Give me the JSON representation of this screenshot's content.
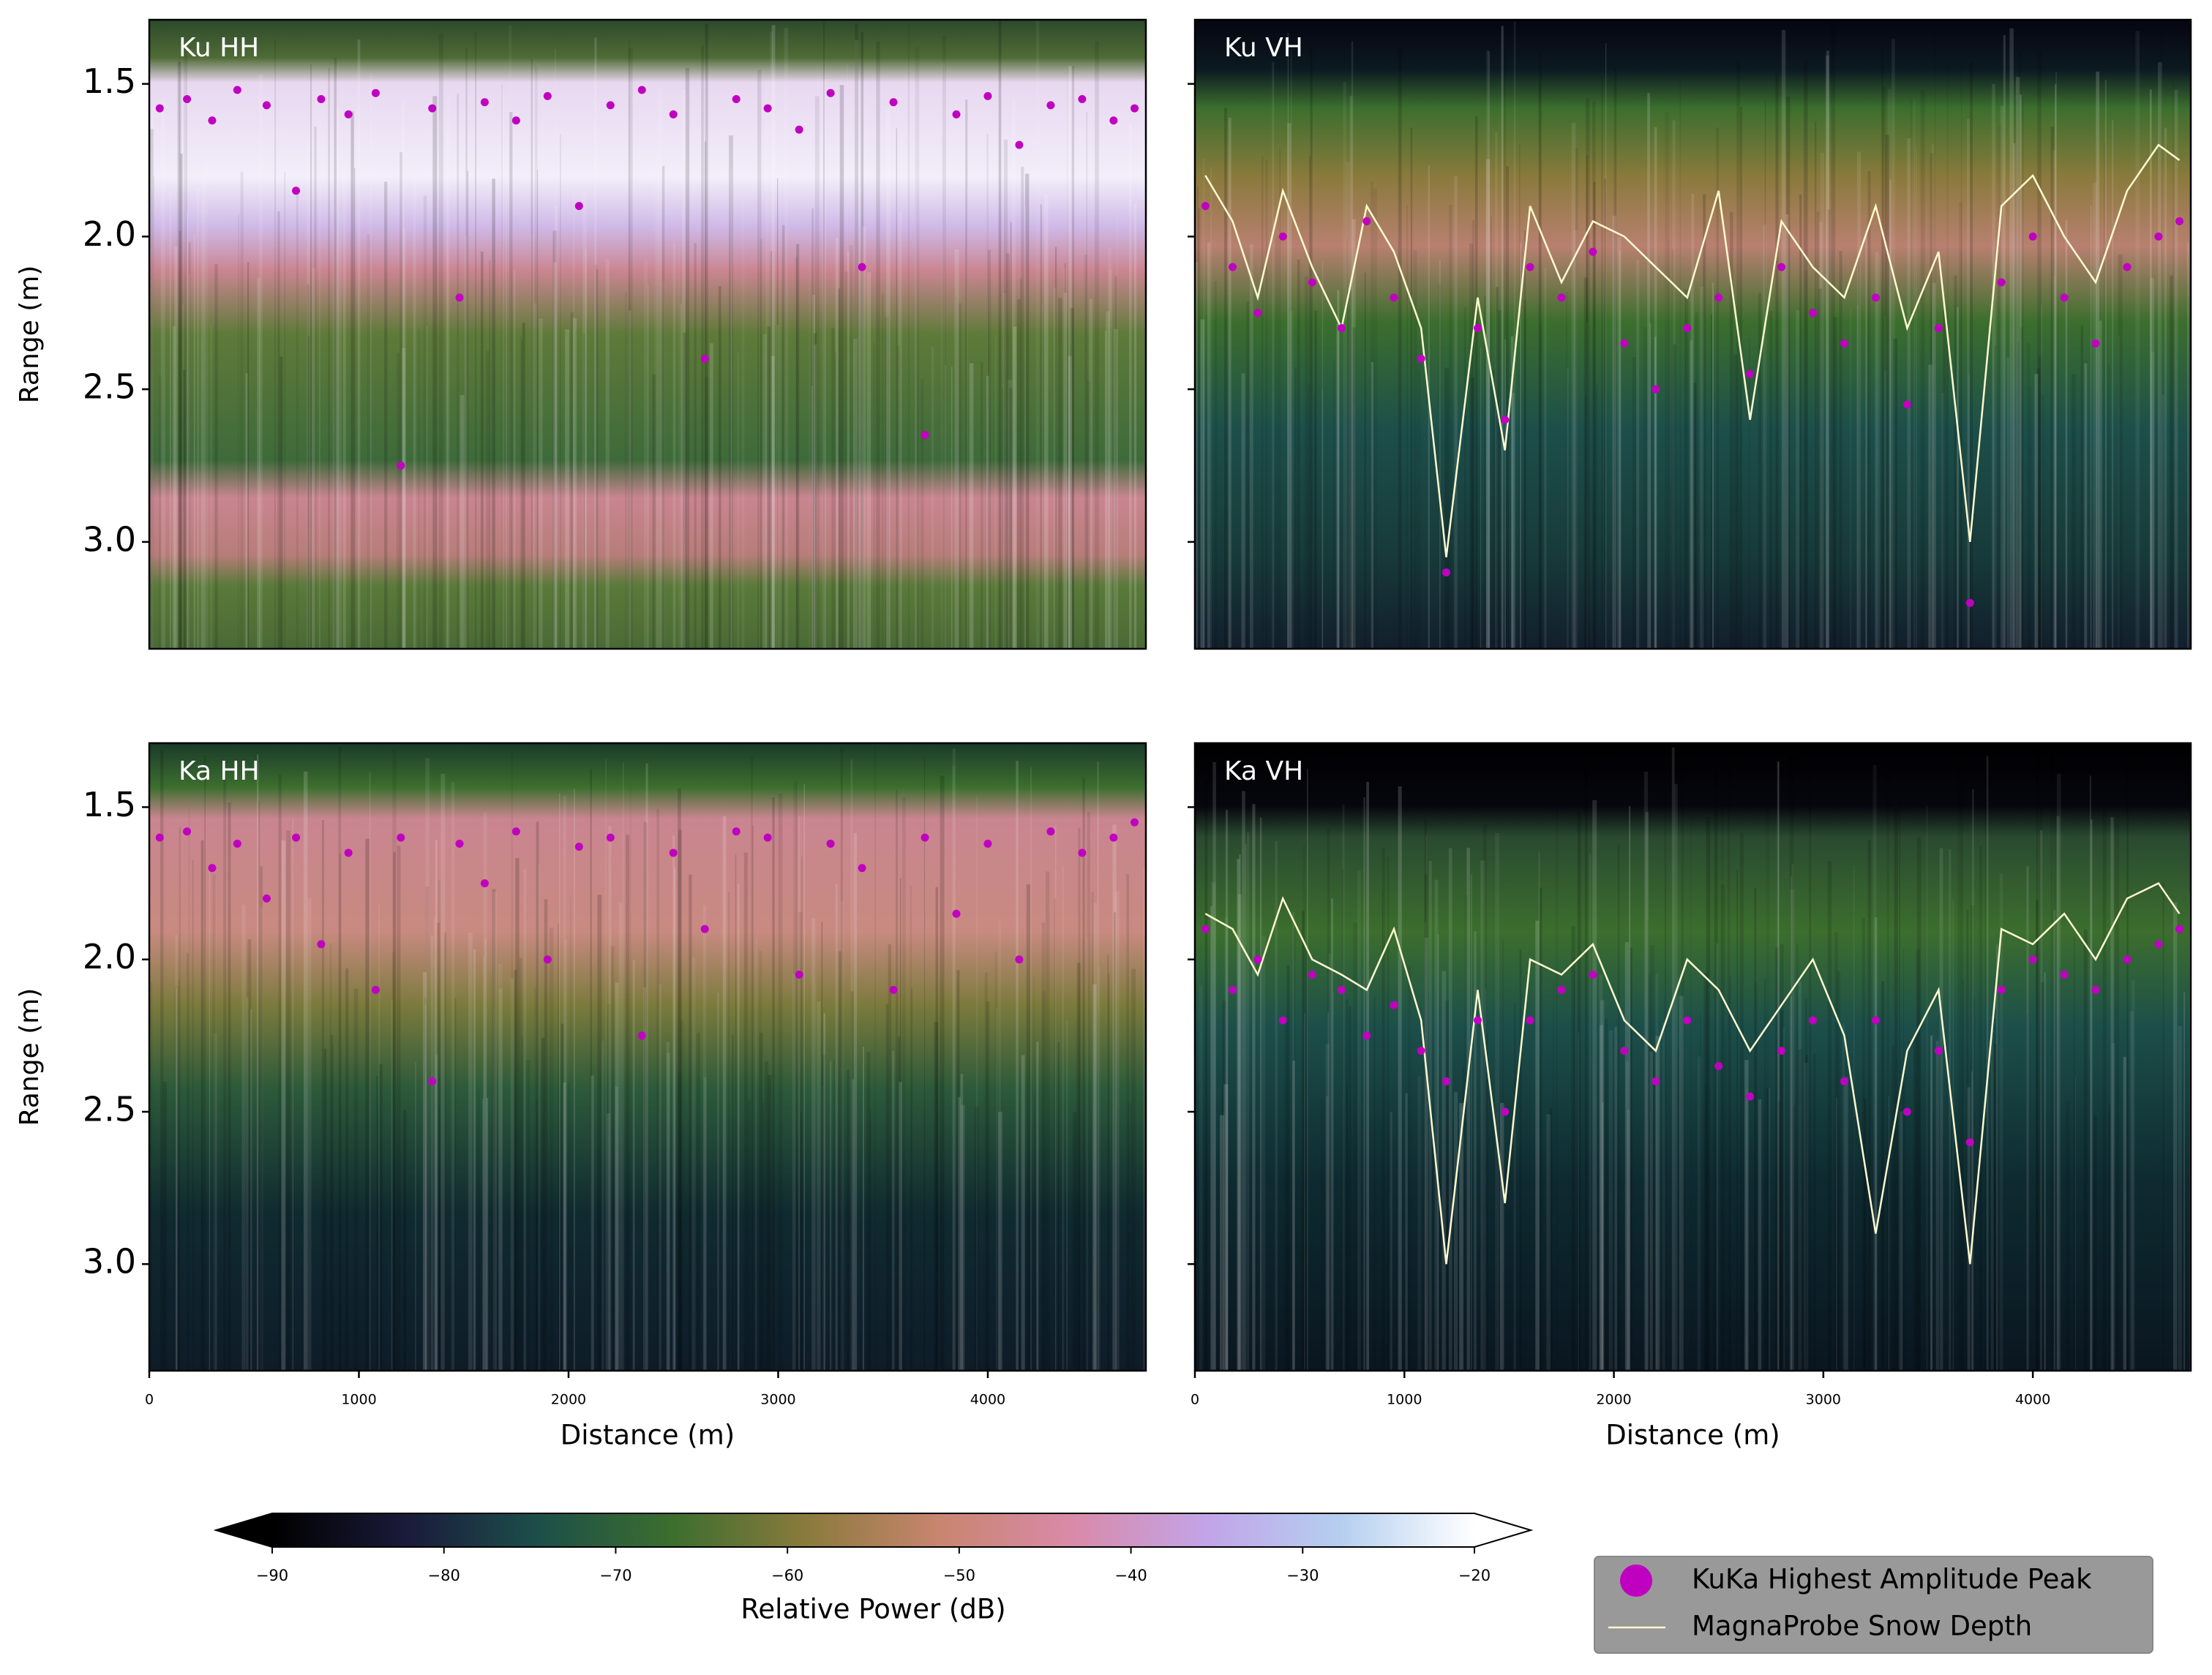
{
  "chart_data": [
    {
      "type": "radargram",
      "label": "Ku HH",
      "ylabel": "Range (m)",
      "background": "kuhh",
      "xlim": [
        0,
        4754
      ],
      "ylim": [
        3.35,
        1.29
      ],
      "yticks": [
        1.5,
        {
          "value": 2,
          "label": "2.0"
        },
        2.5,
        {
          "value": 3,
          "label": "3.0"
        }
      ],
      "x": [
        50,
        180,
        300,
        420,
        560,
        700,
        820,
        950,
        1080,
        1200,
        1350,
        1480,
        1600,
        1750,
        1900,
        2050,
        2200,
        2350,
        2500,
        2650,
        2800,
        2950,
        3100,
        3250,
        3400,
        3550,
        3700,
        3850,
        4000,
        4150,
        4300,
        4450,
        4600,
        4700
      ],
      "series": [
        {
          "name": "KuKa Highest Amplitude Peak",
          "type": "scatter",
          "color": "#c000c0",
          "values": [
            1.58,
            1.55,
            1.62,
            1.52,
            1.57,
            1.85,
            1.55,
            1.6,
            1.53,
            2.75,
            1.58,
            2.2,
            1.56,
            1.62,
            1.54,
            1.9,
            1.57,
            1.52,
            1.6,
            2.4,
            1.55,
            1.58,
            1.65,
            1.53,
            2.1,
            1.56,
            2.65,
            1.6,
            1.54,
            1.7,
            1.57,
            1.55,
            1.62,
            1.58
          ]
        }
      ]
    },
    {
      "type": "radargram",
      "label": "Ku VH",
      "ytick_labels": false,
      "background": "kuvh",
      "xlim": [
        0,
        4754
      ],
      "ylim": [
        3.35,
        1.29
      ],
      "yticks": [
        1.5,
        {
          "value": 2,
          "label": "2.0"
        },
        2.5,
        {
          "value": 3,
          "label": "3.0"
        }
      ],
      "x": [
        50,
        180,
        300,
        420,
        560,
        700,
        820,
        950,
        1080,
        1200,
        1350,
        1480,
        1600,
        1750,
        1900,
        2050,
        2200,
        2350,
        2500,
        2650,
        2800,
        2950,
        3100,
        3250,
        3400,
        3550,
        3700,
        3850,
        4000,
        4150,
        4300,
        4450,
        4600,
        4700
      ],
      "series": [
        {
          "name": "KuKa Highest Amplitude Peak",
          "type": "scatter",
          "color": "#c000c0",
          "values": [
            1.9,
            2.1,
            2.25,
            2.0,
            2.15,
            2.3,
            1.95,
            2.2,
            2.4,
            3.1,
            2.3,
            2.6,
            2.1,
            2.2,
            2.05,
            2.35,
            2.5,
            2.3,
            2.2,
            2.45,
            2.1,
            2.25,
            2.35,
            2.2,
            2.55,
            2.3,
            3.2,
            2.15,
            2.0,
            2.2,
            2.35,
            2.1,
            2.0,
            1.95
          ]
        },
        {
          "name": "MagnaProbe Snow Depth",
          "type": "line",
          "color": "#fffad0",
          "values": [
            1.8,
            1.95,
            2.2,
            1.85,
            2.1,
            2.3,
            1.9,
            2.05,
            2.3,
            3.05,
            2.2,
            2.7,
            1.9,
            2.15,
            1.95,
            2.0,
            2.1,
            2.2,
            1.85,
            2.6,
            1.95,
            2.1,
            2.2,
            1.9,
            2.3,
            2.05,
            3.0,
            1.9,
            1.8,
            2.0,
            2.15,
            1.85,
            1.7,
            1.75
          ]
        }
      ]
    },
    {
      "type": "radargram",
      "label": "Ka HH",
      "ylabel": "Range (m)",
      "xlabel": "Distance (m)",
      "background": "kahh",
      "xlim": [
        0,
        4754
      ],
      "ylim": [
        3.35,
        1.29
      ],
      "xticks": [
        0,
        1000,
        2000,
        3000,
        4000
      ],
      "yticks": [
        1.5,
        {
          "value": 2,
          "label": "2.0"
        },
        2.5,
        {
          "value": 3,
          "label": "3.0"
        }
      ],
      "x": [
        50,
        180,
        300,
        420,
        560,
        700,
        820,
        950,
        1080,
        1200,
        1350,
        1480,
        1600,
        1750,
        1900,
        2050,
        2200,
        2350,
        2500,
        2650,
        2800,
        2950,
        3100,
        3250,
        3400,
        3550,
        3700,
        3850,
        4000,
        4150,
        4300,
        4450,
        4600,
        4700
      ],
      "series": [
        {
          "name": "KuKa Highest Amplitude Peak",
          "type": "scatter",
          "color": "#c000c0",
          "values": [
            1.6,
            1.58,
            1.7,
            1.62,
            1.8,
            1.6,
            1.95,
            1.65,
            2.1,
            1.6,
            2.4,
            1.62,
            1.75,
            1.58,
            2.0,
            1.63,
            1.6,
            2.25,
            1.65,
            1.9,
            1.58,
            1.6,
            2.05,
            1.62,
            1.7,
            2.1,
            1.6,
            1.85,
            1.62,
            2.0,
            1.58,
            1.65,
            1.6,
            1.55
          ]
        }
      ]
    },
    {
      "type": "radargram",
      "label": "Ka VH",
      "xlabel": "Distance (m)",
      "ytick_labels": false,
      "background": "kavh",
      "xlim": [
        0,
        4754
      ],
      "ylim": [
        3.35,
        1.29
      ],
      "xticks": [
        0,
        1000,
        2000,
        3000,
        4000
      ],
      "yticks": [
        1.5,
        {
          "value": 2,
          "label": "2.0"
        },
        2.5,
        {
          "value": 3,
          "label": "3.0"
        }
      ],
      "x": [
        50,
        180,
        300,
        420,
        560,
        700,
        820,
        950,
        1080,
        1200,
        1350,
        1480,
        1600,
        1750,
        1900,
        2050,
        2200,
        2350,
        2500,
        2650,
        2800,
        2950,
        3100,
        3250,
        3400,
        3550,
        3700,
        3850,
        4000,
        4150,
        4300,
        4450,
        4600,
        4700
      ],
      "series": [
        {
          "name": "KuKa Highest Amplitude Peak",
          "type": "scatter",
          "color": "#c000c0",
          "values": [
            1.9,
            2.1,
            2.0,
            2.2,
            2.05,
            2.1,
            2.25,
            2.15,
            2.3,
            2.4,
            2.2,
            2.5,
            2.2,
            2.1,
            2.05,
            2.3,
            2.4,
            2.2,
            2.35,
            2.45,
            2.3,
            2.2,
            2.4,
            2.2,
            2.5,
            2.3,
            2.6,
            2.1,
            2.0,
            2.05,
            2.1,
            2.0,
            1.95,
            1.9
          ]
        },
        {
          "name": "MagnaProbe Snow Depth",
          "type": "line",
          "color": "#fffad0",
          "values": [
            1.85,
            1.9,
            2.05,
            1.8,
            2.0,
            2.05,
            2.1,
            1.9,
            2.2,
            3.0,
            2.1,
            2.8,
            2.0,
            2.05,
            1.95,
            2.2,
            2.3,
            2.0,
            2.1,
            2.3,
            2.15,
            2.0,
            2.25,
            2.9,
            2.3,
            2.1,
            3.0,
            1.9,
            1.95,
            1.85,
            2.0,
            1.8,
            1.75,
            1.85
          ]
        }
      ]
    },
    {
      "type": "colorbar",
      "label": "Relative Power (dB)",
      "extend": "both",
      "xlim": [
        -90,
        -20
      ],
      "xticks": [
        {
          "value": -90,
          "label": "−90"
        },
        {
          "value": -80,
          "label": "−80"
        },
        {
          "value": -70,
          "label": "−70"
        },
        {
          "value": -60,
          "label": "−60"
        },
        {
          "value": -50,
          "label": "−50"
        },
        {
          "value": -40,
          "label": "−40"
        },
        {
          "value": -30,
          "label": "−30"
        },
        {
          "value": -20,
          "label": "−20"
        }
      ],
      "colors": [
        "#000000",
        "#1a1a3a",
        "#1d4f4a",
        "#3c6e2e",
        "#8a7a3c",
        "#c98570",
        "#d98aa9",
        "#c2a4e8",
        "#b5cff0",
        "#ffffff"
      ]
    }
  ]
}
